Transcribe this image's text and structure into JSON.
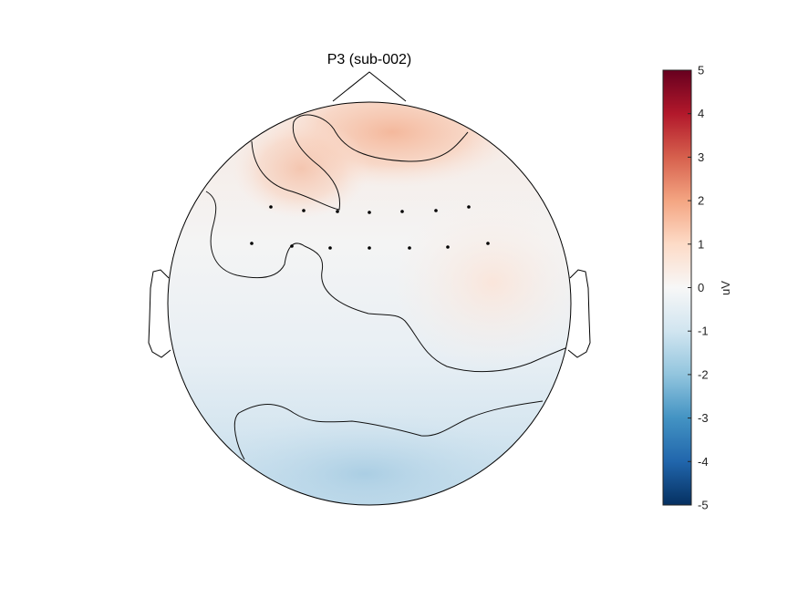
{
  "chart_data": {
    "type": "heatmap",
    "title": "P3 (sub-002)",
    "colorbar": {
      "label": "uV",
      "range": [
        -5,
        5
      ],
      "ticks": [
        5,
        4,
        3,
        2,
        1,
        0,
        -1,
        -2,
        -3,
        -4,
        -5
      ],
      "colormap": [
        "#053061",
        "#2166ac",
        "#4393c3",
        "#92c5de",
        "#d1e5f0",
        "#f7f7f7",
        "#fddbc7",
        "#f4a582",
        "#d6604d",
        "#b2182b",
        "#67001f"
      ]
    },
    "electrodes_row1_count": 7,
    "electrodes_row2_count": 7,
    "contours": true,
    "grid": false
  }
}
